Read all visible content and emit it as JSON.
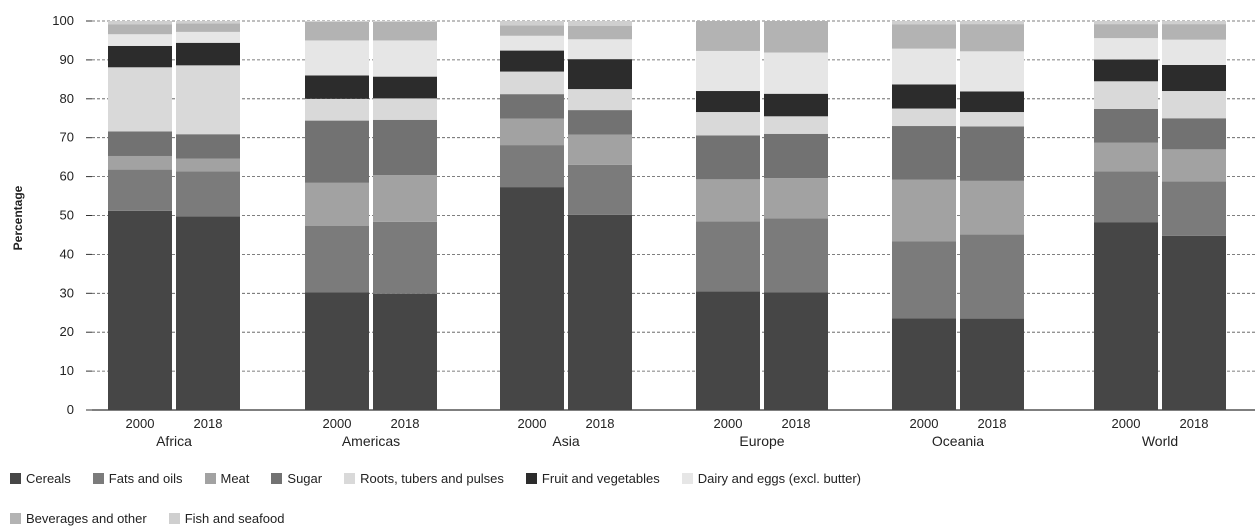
{
  "chart_data": {
    "type": "stacked-bar",
    "ylabel": "Percentage",
    "ylim": [
      0,
      100
    ],
    "yticks": [
      0,
      10,
      20,
      30,
      40,
      50,
      60,
      70,
      80,
      90,
      100
    ],
    "grid": "horizontal dashed",
    "legend_position": "bottom",
    "groups": [
      {
        "name": "Africa",
        "bars": [
          {
            "label": "2000",
            "values": [
              51.2,
              10.6,
              3.5,
              6.3,
              16.5,
              5.5,
              3.0,
              2.5,
              0.9
            ]
          },
          {
            "label": "2018",
            "values": [
              49.8,
              11.5,
              3.3,
              6.3,
              17.7,
              5.8,
              2.8,
              2.2,
              0.6
            ]
          }
        ]
      },
      {
        "name": "Americas",
        "bars": [
          {
            "label": "2000",
            "values": [
              30.2,
              17.1,
              11.1,
              16.0,
              5.6,
              6.0,
              9.0,
              4.8,
              0.2
            ]
          },
          {
            "label": "2018",
            "values": [
              29.9,
              18.5,
              12.0,
              14.2,
              5.5,
              5.6,
              9.3,
              4.8,
              0.2
            ]
          }
        ]
      },
      {
        "name": "Asia",
        "bars": [
          {
            "label": "2000",
            "values": [
              57.3,
              10.8,
              6.8,
              6.3,
              5.8,
              5.4,
              3.8,
              2.7,
              1.1
            ]
          },
          {
            "label": "2018",
            "values": [
              50.2,
              12.8,
              7.8,
              6.3,
              5.4,
              7.7,
              5.1,
              3.5,
              1.2
            ]
          }
        ]
      },
      {
        "name": "Europe",
        "bars": [
          {
            "label": "2000",
            "values": [
              30.5,
              18.0,
              10.8,
              11.3,
              6.0,
              5.4,
              10.3,
              7.7,
              0.0
            ]
          },
          {
            "label": "2018",
            "values": [
              30.2,
              19.1,
              10.3,
              11.4,
              4.5,
              5.8,
              10.6,
              8.1,
              0.0
            ]
          }
        ]
      },
      {
        "name": "Oceania",
        "bars": [
          {
            "label": "2000",
            "values": [
              23.6,
              19.8,
              15.8,
              13.8,
              4.5,
              6.2,
              9.2,
              6.2,
              0.9
            ]
          },
          {
            "label": "2018",
            "values": [
              23.5,
              21.6,
              13.8,
              14.0,
              3.7,
              5.3,
              10.3,
              7.0,
              0.8
            ]
          }
        ]
      },
      {
        "name": "World",
        "bars": [
          {
            "label": "2000",
            "values": [
              48.2,
              13.1,
              7.4,
              8.7,
              7.1,
              5.6,
              5.5,
              3.6,
              0.8
            ]
          },
          {
            "label": "2018",
            "values": [
              44.8,
              14.0,
              8.2,
              8.0,
              7.0,
              6.7,
              6.5,
              4.0,
              0.8
            ]
          }
        ]
      }
    ],
    "series": [
      {
        "name": "Cereals",
        "color": "#464646"
      },
      {
        "name": "Fats and oils",
        "color": "#7b7b7b"
      },
      {
        "name": "Meat",
        "color": "#a2a2a2"
      },
      {
        "name": "Sugar",
        "color": "#727272"
      },
      {
        "name": "Roots, tubers and pulses",
        "color": "#d9d9d9"
      },
      {
        "name": "Fruit and vegetables",
        "color": "#2c2c2c"
      },
      {
        "name": "Dairy and eggs (excl. butter)",
        "color": "#e6e6e6"
      },
      {
        "name": "Beverages and other",
        "color": "#b3b3b3"
      },
      {
        "name": "Fish and seafood",
        "color": "#cfcfcf"
      }
    ]
  }
}
